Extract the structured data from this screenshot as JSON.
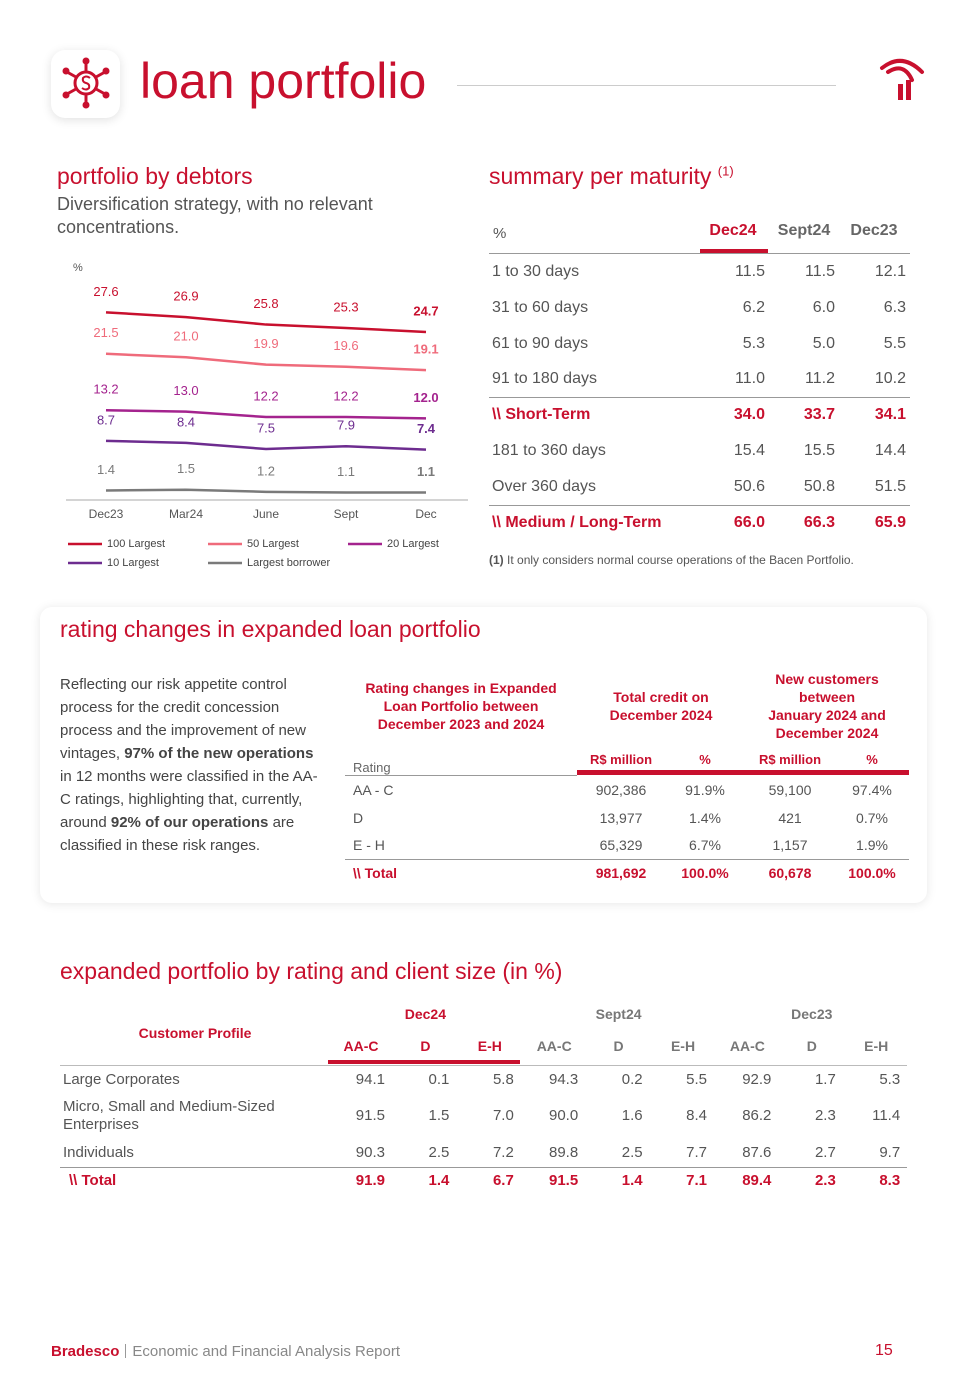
{
  "header": {
    "title": "loan portfolio"
  },
  "chart_data": {
    "type": "line",
    "title": "portfolio by debtors",
    "subtitle": "Diversification strategy, with no relevant concentrations.",
    "y_label": "%",
    "categories": [
      "Dec23",
      "Mar24",
      "June",
      "Sept",
      "Dec"
    ],
    "ylim": [
      0,
      30
    ],
    "series": [
      {
        "name": "100 Largest",
        "color": "#c8102e",
        "values": [
          27.6,
          26.9,
          25.8,
          25.3,
          24.7
        ],
        "value_labels": [
          "27.6",
          "26.9",
          "25.8",
          "25.3",
          "24.7"
        ]
      },
      {
        "name": "50 Largest",
        "color": "#ef6b7b",
        "values": [
          21.5,
          21.0,
          19.9,
          19.6,
          19.1
        ],
        "value_labels": [
          "21.5",
          "21.0",
          "19.9",
          "19.6",
          "19.1"
        ]
      },
      {
        "name": "20 Largest",
        "color": "#a4238e",
        "values": [
          13.2,
          13.0,
          12.2,
          12.2,
          12.0
        ],
        "value_labels": [
          "13.2",
          "13.0",
          "12.2",
          "12.2",
          "12.0"
        ]
      },
      {
        "name": "10 Largest",
        "color": "#6d2c8f",
        "values": [
          8.7,
          8.4,
          7.5,
          7.9,
          7.4
        ],
        "value_labels": [
          "8.7",
          "8.4",
          "7.5",
          "7.9",
          "7.4"
        ]
      },
      {
        "name": "Largest borrower",
        "color": "#7a7a7a",
        "values": [
          1.4,
          1.5,
          1.2,
          1.1,
          1.1
        ],
        "value_labels": [
          "1.4",
          "1.5",
          "1.2",
          "1.1",
          "1.1"
        ]
      }
    ]
  },
  "maturity": {
    "title": "summary per maturity",
    "title_note": "(1)",
    "columns": [
      "%",
      "Dec24",
      "Sept24",
      "Dec23"
    ],
    "rows": [
      [
        "1 to 30 days",
        "11.5",
        "11.5",
        "12.1"
      ],
      [
        "31 to 60 days",
        "6.2",
        "6.0",
        "6.3"
      ],
      [
        "61 to 90 days",
        "5.3",
        "5.0",
        "5.5"
      ],
      [
        "91 to 180 days",
        "11.0",
        "11.2",
        "10.2"
      ],
      [
        "\\\\ Short-Term",
        "34.0",
        "33.7",
        "34.1"
      ],
      [
        "181 to 360 days",
        "15.4",
        "15.5",
        "14.4"
      ],
      [
        "Over 360 days",
        "50.6",
        "50.8",
        "51.5"
      ],
      [
        "\\\\ Medium / Long-Term",
        "66.0",
        "66.3",
        "65.9"
      ]
    ],
    "footnote_mark": "(1)",
    "footnote": "It only considers normal course operations of the Bacen Portfolio."
  },
  "rating_changes": {
    "title": "rating changes in expanded loan portfolio",
    "text": [
      "Reflecting our risk appetite control process for the credit concession process and the improvement of new vintages, ",
      "97% of the new operations",
      " in 12 months were classified in the AA-C ratings, highlighting that, currently, around ",
      "92% of our operations",
      " are classified in these risk ranges."
    ],
    "table": {
      "group_headers": [
        "Rating changes in Expanded\nLoan Portfolio between\nDecember 2023 and 2024",
        "Total credit on\nDecember 2024",
        "New customers\nbetween\nJanuary 2024 and\nDecember 2024"
      ],
      "sub_headers": [
        "Rating",
        "R$ million",
        "%",
        "R$ million",
        "%"
      ],
      "rows": [
        [
          "AA - C",
          "902,386",
          "91.9%",
          "59,100",
          "97.4%"
        ],
        [
          "D",
          "13,977",
          "1.4%",
          "421",
          "0.7%"
        ],
        [
          "E - H",
          "65,329",
          "6.7%",
          "1,157",
          "1.9%"
        ],
        [
          "\\\\ Total",
          "981,692",
          "100.0%",
          "60,678",
          "100.0%"
        ]
      ]
    }
  },
  "portfolio_by_rating": {
    "title": "expanded portfolio by rating and client size (in %)",
    "row_header": "Customer Profile",
    "groups": [
      "Dec24",
      "Sept24",
      "Dec23"
    ],
    "sub_headers": [
      "AA-C",
      "D",
      "E-H"
    ],
    "rows": [
      [
        "Large Corporates",
        "94.1",
        "0.1",
        "5.8",
        "94.3",
        "0.2",
        "5.5",
        "92.9",
        "1.7",
        "5.3"
      ],
      [
        "Micro, Small and Medium-Sized Enterprises",
        "91.5",
        "1.5",
        "7.0",
        "90.0",
        "1.6",
        "8.4",
        "86.2",
        "2.3",
        "11.4"
      ],
      [
        "Individuals",
        "90.3",
        "2.5",
        "7.2",
        "89.8",
        "2.5",
        "7.7",
        "87.6",
        "2.7",
        "9.7"
      ],
      [
        "\\\\ Total",
        "91.9",
        "1.4",
        "6.7",
        "91.5",
        "1.4",
        "7.1",
        "89.4",
        "2.3",
        "8.3"
      ]
    ]
  },
  "footer": {
    "brand": "Bradesco",
    "report": "Economic and Financial Analysis Report",
    "page": "15"
  }
}
